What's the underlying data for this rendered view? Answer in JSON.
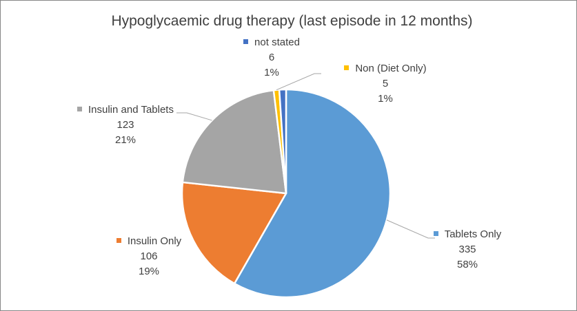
{
  "chart_data": {
    "type": "pie",
    "title": "Hypoglycaemic drug therapy (last episode in 12 months)",
    "legend": "none",
    "slices": [
      {
        "label": "Tablets Only",
        "value": 335,
        "percent": "58%",
        "color": "#5B9BD5"
      },
      {
        "label": "Insulin Only",
        "value": 106,
        "percent": "19%",
        "color": "#ED7D31"
      },
      {
        "label": "Insulin and Tablets",
        "value": 123,
        "percent": "21%",
        "color": "#A5A5A5"
      },
      {
        "label": "Non (Diet Only)",
        "value": 5,
        "percent": "1%",
        "color": "#FFC000"
      },
      {
        "label": "not stated",
        "value": 6,
        "percent": "1%",
        "color": "#4472C4"
      }
    ]
  }
}
